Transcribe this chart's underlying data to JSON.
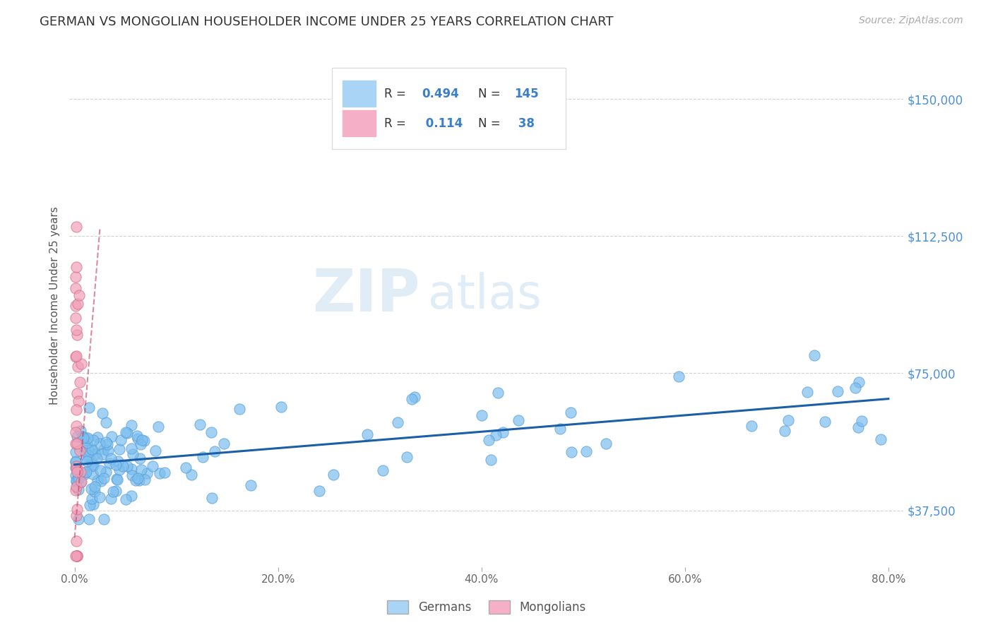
{
  "title": "GERMAN VS MONGOLIAN HOUSEHOLDER INCOME UNDER 25 YEARS CORRELATION CHART",
  "source": "Source: ZipAtlas.com",
  "ylabel_label": "Householder Income Under 25 years",
  "watermark_zip": "ZIP",
  "watermark_atlas": "atlas",
  "german_scatter_color": "#7bbef0",
  "german_scatter_edge": "#5a9fd4",
  "mongolian_scatter_color": "#f0a0b8",
  "mongolian_scatter_edge": "#d4708a",
  "trend_german_color": "#1a5fa8",
  "trend_mongolian_color": "#c04060",
  "background_color": "#ffffff",
  "grid_color": "#cccccc",
  "title_color": "#333333",
  "right_tick_color": "#4a90d9",
  "xlim": [
    -0.005,
    0.815
  ],
  "ylim": [
    22000,
    165000
  ],
  "yticks": [
    37500,
    75000,
    112500,
    150000
  ],
  "xticks": [
    0.0,
    0.2,
    0.4,
    0.6,
    0.8
  ],
  "legend_german_color": "#aad4f5",
  "legend_mongolian_color": "#f5b0c8",
  "r_color": "#3a7fc8",
  "n_color": "#3a7fc8"
}
